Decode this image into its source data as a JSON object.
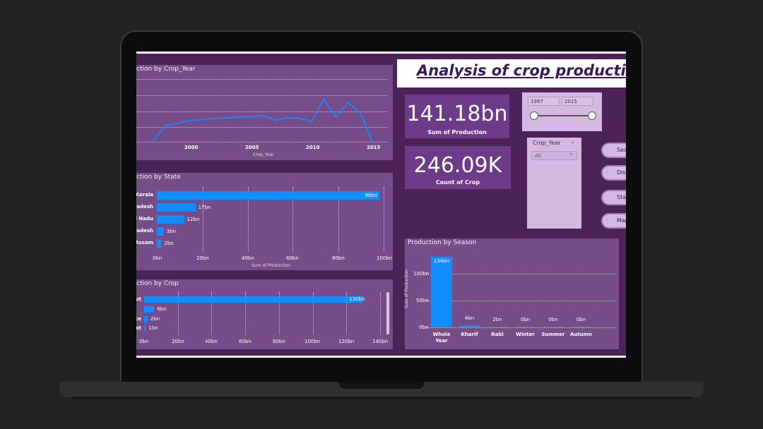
{
  "report": {
    "title": "Analysis of crop production",
    "cards": {
      "sum_production": {
        "value": "141.18bn",
        "label": "Sum of Production"
      },
      "count_crop": {
        "value": "246.09K",
        "label": "Count of Crop"
      }
    },
    "year_slicer": {
      "from": "1997",
      "to": "2015"
    },
    "crop_year_dropdown": {
      "title": "Crop_Year",
      "value": "All"
    },
    "nav_buttons": [
      "Sea",
      "Dis",
      "Stat",
      "Map"
    ]
  },
  "chart_data": [
    {
      "type": "line",
      "title": "ction by Crop_Year",
      "xlabel": "Crop_Year",
      "x_ticks": [
        "2000",
        "2005",
        "2010",
        "2015"
      ],
      "x": [
        1997,
        1998,
        1999,
        2000,
        2001,
        2002,
        2003,
        2004,
        2005,
        2006,
        2007,
        2008,
        2009,
        2010,
        2011,
        2012,
        2013,
        2014,
        2015
      ],
      "values": [
        0.5,
        5.5,
        6.2,
        7.2,
        7.4,
        7.8,
        8.0,
        8.3,
        8.3,
        8.8,
        7.2,
        8.1,
        7.9,
        6.8,
        14.3,
        8.3,
        13.1,
        9.8,
        0.2
      ],
      "ylim": [
        0,
        21
      ]
    },
    {
      "type": "bar",
      "orientation": "horizontal",
      "title": "ction by State",
      "xlabel": "Sum of Production",
      "categories": [
        "Kerala",
        "Pradesh",
        "il Nadu",
        "Pradesh",
        "Assam"
      ],
      "values": [
        98,
        17,
        12,
        3,
        2
      ],
      "labels": [
        "98bn",
        "17bn",
        "12bn",
        "3bn",
        "2bn"
      ],
      "x_ticks": [
        "0bn",
        "20bn",
        "40bn",
        "60bn",
        "80bn",
        "100bn"
      ],
      "xlim": [
        0,
        100
      ]
    },
    {
      "type": "bar",
      "orientation": "horizontal",
      "title": "ction by Crop",
      "categories": [
        "ut",
        "",
        "ce",
        "at"
      ],
      "values": [
        130,
        6,
        2,
        1
      ],
      "labels": [
        "130bn",
        "6bn",
        "2bn",
        "1bn"
      ],
      "x_ticks": [
        "0bn",
        "20bn",
        "40bn",
        "60bn",
        "80bn",
        "100bn",
        "120bn",
        "140bn"
      ],
      "xlim": [
        0,
        140
      ]
    },
    {
      "type": "bar",
      "title": "Production by Season",
      "ylabel": "Sum of Production",
      "categories": [
        "Whole Year",
        "Kharif",
        "Rabi",
        "Winter",
        "Summer",
        "Autumn"
      ],
      "values": [
        134,
        4,
        2,
        0,
        0,
        0
      ],
      "labels": [
        "134bn",
        "4bn",
        "2bn",
        "0bn",
        "0bn",
        "0bn"
      ],
      "y_ticks": [
        "0bn",
        "50bn",
        "100bn"
      ],
      "ylim": [
        0,
        134
      ]
    }
  ],
  "colors": {
    "bar": "#118dff",
    "panel": "#764d88",
    "background": "#4c2358"
  }
}
